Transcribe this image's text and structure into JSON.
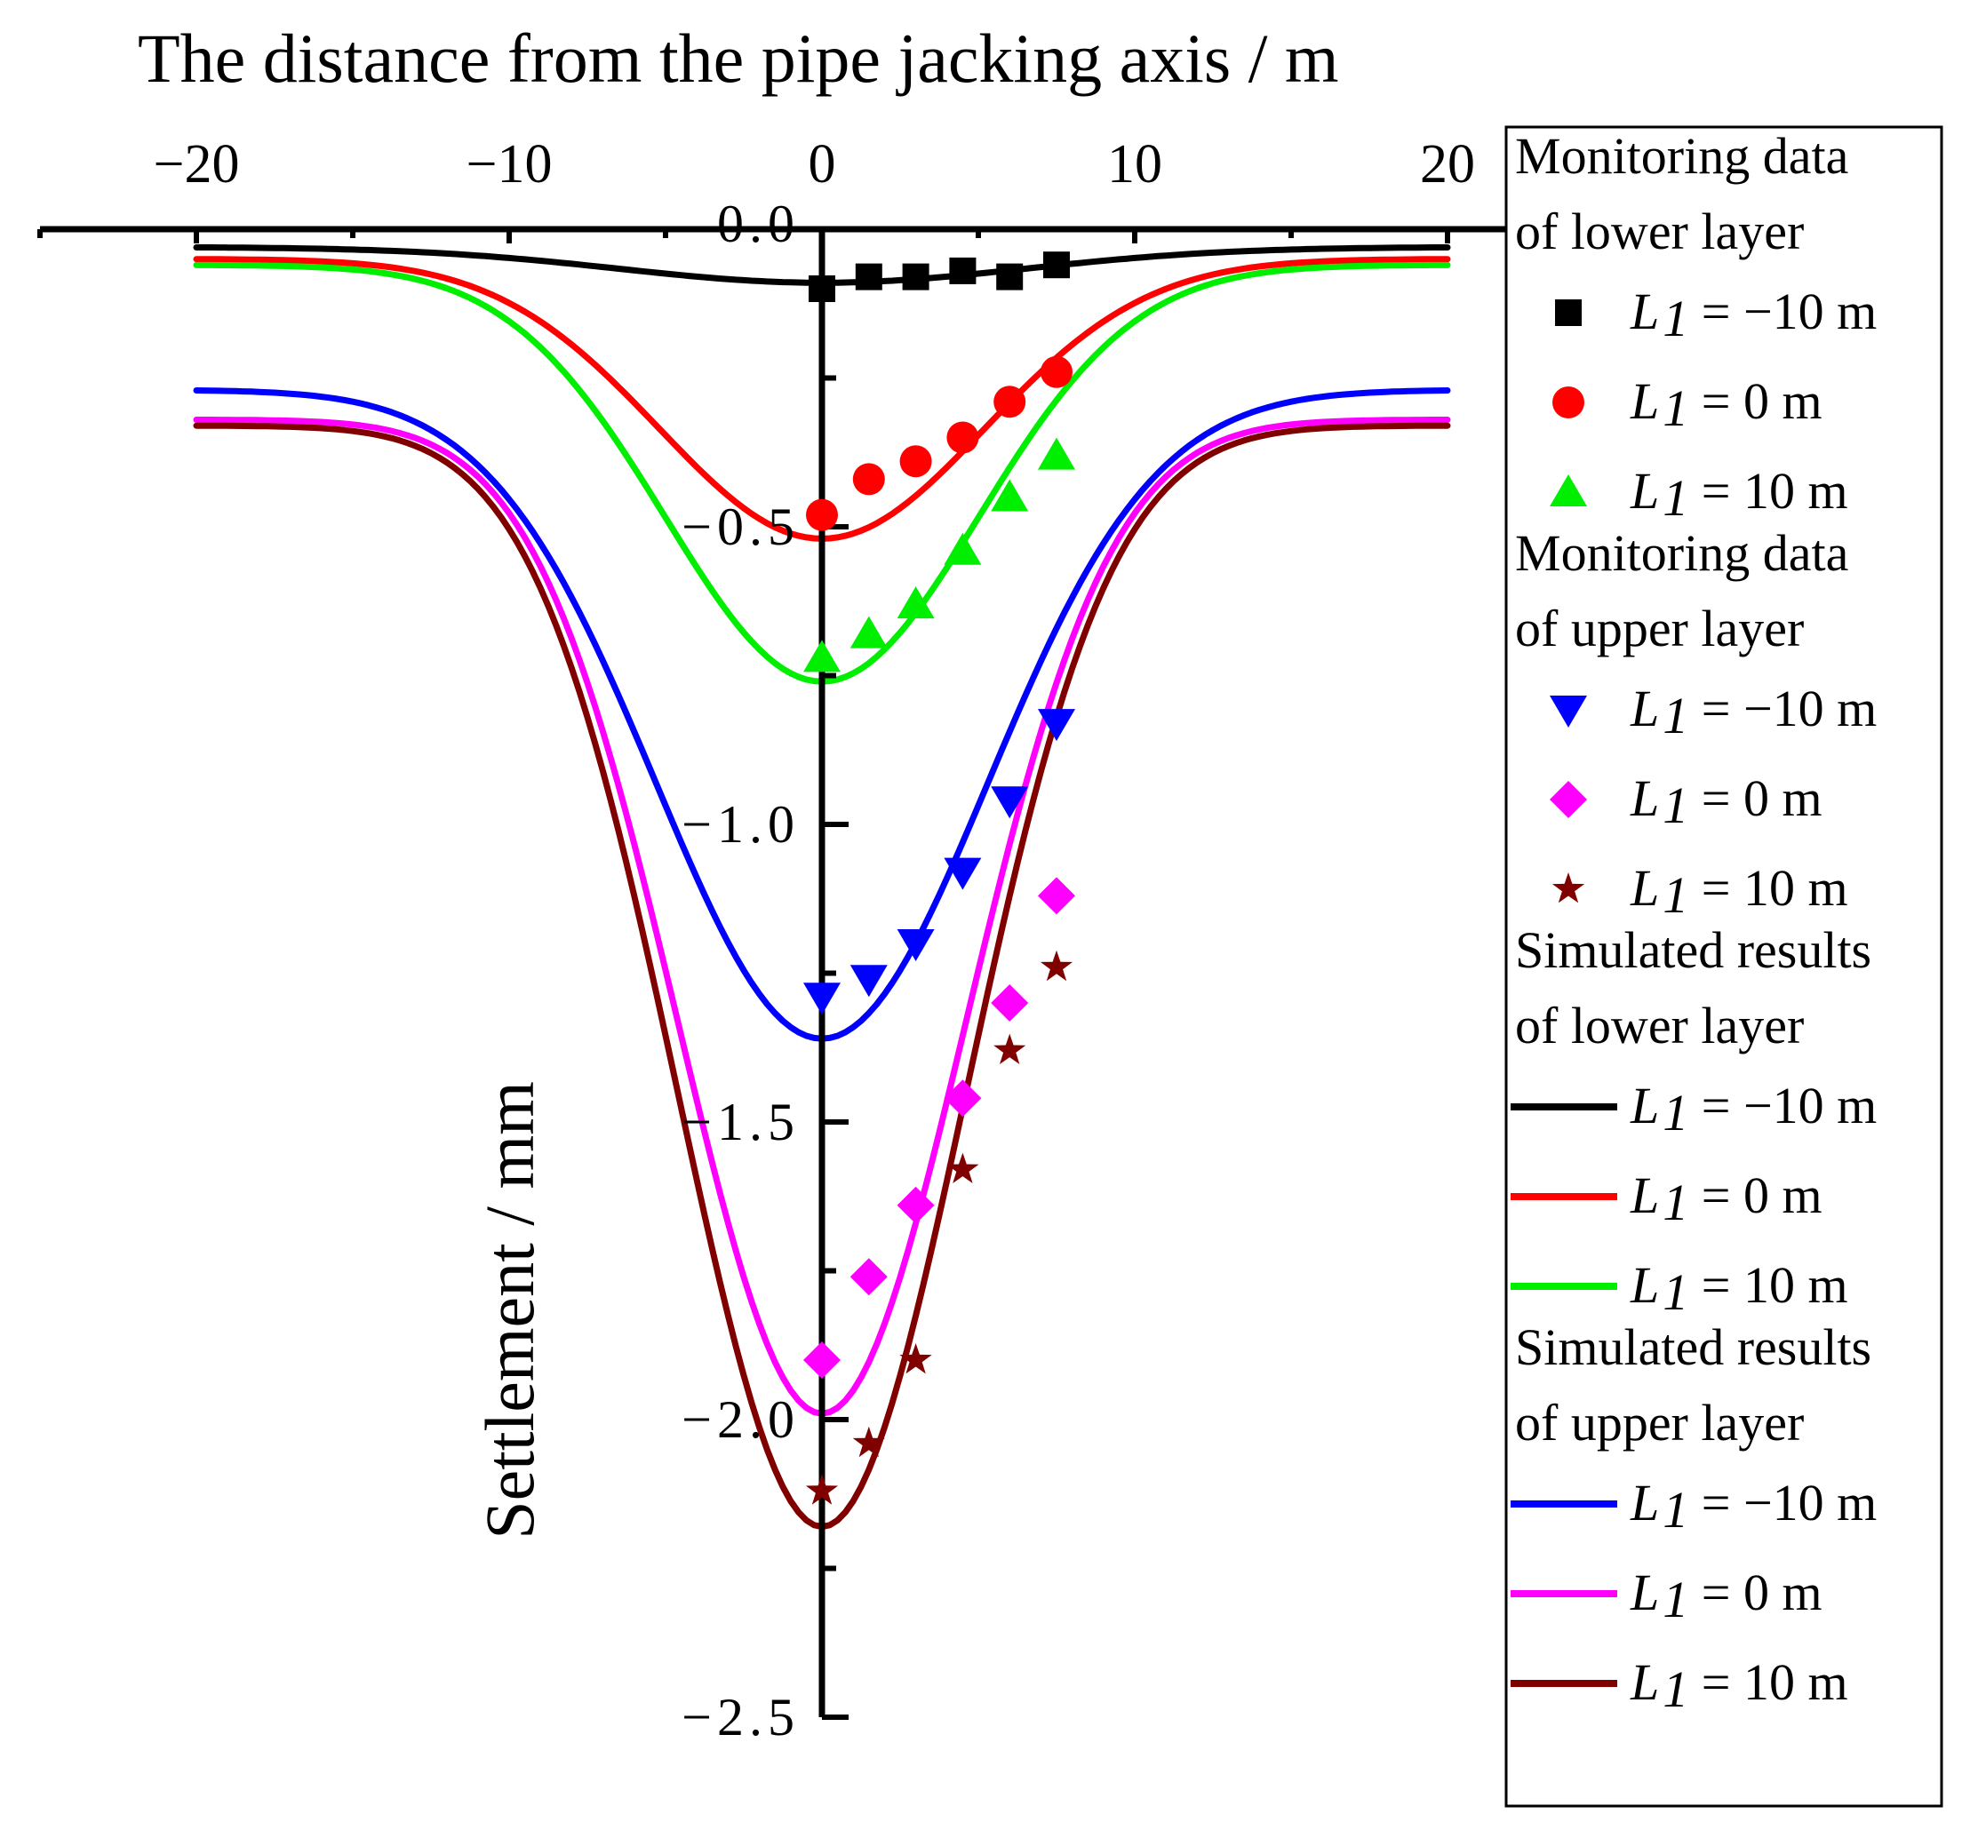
{
  "chart_data": {
    "type": "line",
    "xlabel": "The distance from the pipe jacking axis / m",
    "ylabel": "Settlement / mm",
    "xlim": [
      -25,
      21.5
    ],
    "ylim": [
      0,
      -2.5
    ],
    "x_ticks": [
      -20,
      -10,
      0,
      10,
      20
    ],
    "x_tick_labels": [
      "−20",
      "−10",
      "0",
      "10",
      "20"
    ],
    "y_ticks": [
      0,
      -0.5,
      -1.0,
      -1.5,
      -2.0,
      -2.5
    ],
    "y_tick_labels": [
      "0.0",
      "−0.5",
      "−1.0",
      "−1.5",
      "−2.0",
      "−2.5"
    ],
    "x_axis_position": "top",
    "y_axis_position": "x = 0",
    "monitoring_x": [
      0,
      1.5,
      3,
      4.5,
      6,
      7.5
    ],
    "curve_x_range": [
      -20,
      20
    ],
    "legend": {
      "headings": [
        "Monitoring data of lower layer",
        "Monitoring data of upper layer",
        "Simulated  results of lower layer",
        "Simulated  results of upper layer"
      ],
      "labels": [
        "L1 = −10 m",
        "L1 = 0 m",
        "L1 = 10 m"
      ],
      "l_symbol": "L",
      "l_sub": "1"
    },
    "monitoring_series": [
      {
        "name": "Monitoring lower L1 = −10 m",
        "layer": "lower",
        "label": "L1 = −10 m",
        "marker": "square",
        "color": "#000000",
        "values": [
          -0.1,
          -0.08,
          -0.08,
          -0.07,
          -0.08,
          -0.06
        ]
      },
      {
        "name": "Monitoring lower L1 = 0 m",
        "layer": "lower",
        "label": "L1 = 0 m",
        "marker": "circle",
        "color": "#ff0000",
        "values": [
          -0.48,
          -0.42,
          -0.39,
          -0.35,
          -0.29,
          -0.24
        ]
      },
      {
        "name": "Monitoring lower L1 = 10 m",
        "layer": "lower",
        "label": "L1 = 10 m",
        "marker": "triangle-up",
        "color": "#00ee00",
        "values": [
          -0.72,
          -0.68,
          -0.63,
          -0.54,
          -0.45,
          -0.38
        ]
      },
      {
        "name": "Monitoring upper L1 = −10 m",
        "layer": "upper",
        "label": "L1 = −10 m",
        "marker": "triangle-down",
        "color": "#0000ff",
        "values": [
          -1.29,
          -1.26,
          -1.2,
          -1.08,
          -0.96,
          -0.83
        ]
      },
      {
        "name": "Monitoring upper L1 = 0 m",
        "layer": "upper",
        "label": "L1 = 0 m",
        "marker": "diamond",
        "color": "#ff00ff",
        "values": [
          -1.9,
          -1.76,
          -1.64,
          -1.46,
          -1.3,
          -1.12
        ]
      },
      {
        "name": "Monitoring upper L1 = 10 m",
        "layer": "upper",
        "label": "L1 = 10 m",
        "marker": "star",
        "color": "#800000",
        "values": [
          -2.12,
          -2.04,
          -1.9,
          -1.58,
          -1.38,
          -1.24
        ]
      }
    ],
    "simulated_series": [
      {
        "name": "Simulated lower L1 = −10 m",
        "layer": "lower",
        "label": "L1 = −10 m",
        "color": "#000000",
        "center": -0.09,
        "edge": -0.03,
        "sigma": 6.5
      },
      {
        "name": "Simulated lower L1 = 0 m",
        "layer": "lower",
        "label": "L1 = 0 m",
        "color": "#ff0000",
        "center": -0.52,
        "edge": -0.05,
        "sigma": 5.2
      },
      {
        "name": "Simulated lower L1 = 10 m",
        "layer": "lower",
        "label": "L1 = 10 m",
        "color": "#00ee00",
        "center": -0.76,
        "edge": -0.06,
        "sigma": 5.0
      },
      {
        "name": "Simulated upper L1 = −10 m",
        "layer": "upper",
        "label": "L1 = −10 m",
        "color": "#0000ff",
        "center": -1.36,
        "edge": -0.27,
        "sigma": 5.3
      },
      {
        "name": "Simulated upper L1 = 0 m",
        "layer": "upper",
        "label": "L1 = 0 m",
        "color": "#ff00ff",
        "center": -1.99,
        "edge": -0.32,
        "sigma": 4.6
      },
      {
        "name": "Simulated upper L1 = 10 m",
        "layer": "upper",
        "label": "L1 = 10 m",
        "color": "#800000",
        "center": -2.18,
        "edge": -0.33,
        "sigma": 4.6
      }
    ]
  }
}
